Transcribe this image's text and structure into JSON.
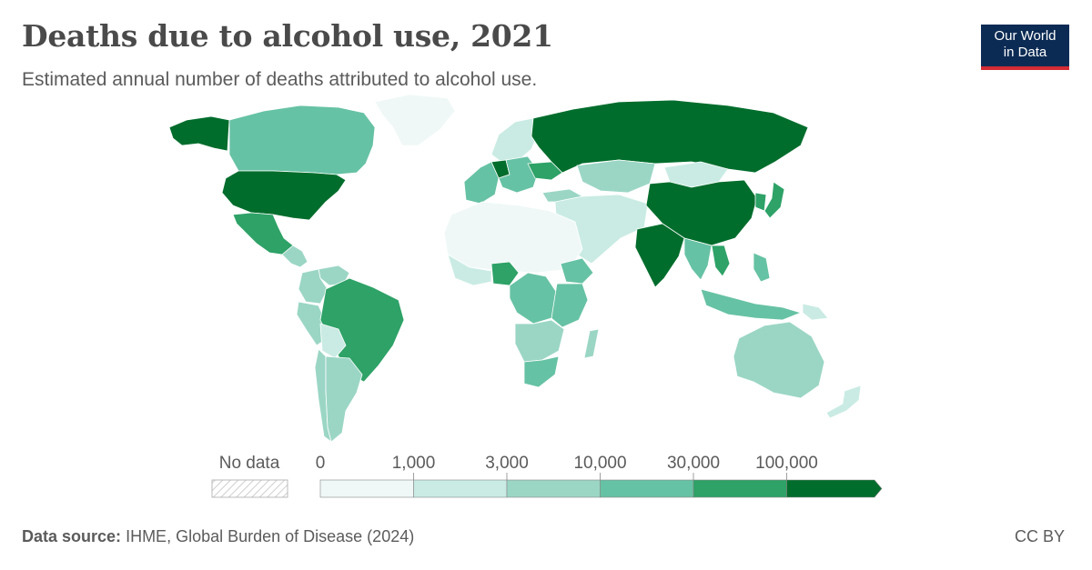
{
  "header": {
    "title": "Deaths due to alcohol use, 2021",
    "subtitle": "Estimated annual number of deaths attributed to alcohol use."
  },
  "logo": {
    "line1": "Our World",
    "line2": "in Data"
  },
  "legend": {
    "no_data_label": "No data",
    "tick_labels": [
      "0",
      "1,000",
      "3,000",
      "10,000",
      "30,000",
      "100,000"
    ],
    "colors": [
      "#eff8f7",
      "#c9ebe3",
      "#9bd6c5",
      "#66c2a4",
      "#2ea267",
      "#006d2c"
    ]
  },
  "footer": {
    "source_label": "Data source:",
    "source_text": "IHME, Global Burden of Disease (2024)",
    "license": "CC BY"
  },
  "map_data": {
    "type": "choropleth",
    "metric": "deaths attributed to alcohol use",
    "bins": [
      0,
      1000,
      3000,
      10000,
      30000,
      100000
    ],
    "regions": [
      {
        "id": "usa",
        "bin": 5
      },
      {
        "id": "alaska",
        "bin": 5
      },
      {
        "id": "canada",
        "bin": 3
      },
      {
        "id": "greenland",
        "bin": 0
      },
      {
        "id": "mexico",
        "bin": 4
      },
      {
        "id": "central-america",
        "bin": 2
      },
      {
        "id": "colombia",
        "bin": 2
      },
      {
        "id": "venezuela",
        "bin": 2
      },
      {
        "id": "peru",
        "bin": 2
      },
      {
        "id": "brazil",
        "bin": 4
      },
      {
        "id": "bolivia",
        "bin": 1
      },
      {
        "id": "argentina",
        "bin": 2
      },
      {
        "id": "chile",
        "bin": 2
      },
      {
        "id": "russia",
        "bin": 5
      },
      {
        "id": "china",
        "bin": 5
      },
      {
        "id": "india",
        "bin": 5
      },
      {
        "id": "mongolia",
        "bin": 1
      },
      {
        "id": "kazakhstan",
        "bin": 2
      },
      {
        "id": "nordics",
        "bin": 1
      },
      {
        "id": "western-europe",
        "bin": 3
      },
      {
        "id": "germany",
        "bin": 5
      },
      {
        "id": "eastern-europe",
        "bin": 3
      },
      {
        "id": "ukraine",
        "bin": 4
      },
      {
        "id": "turkey",
        "bin": 2
      },
      {
        "id": "middle-east",
        "bin": 1
      },
      {
        "id": "north-africa",
        "bin": 0
      },
      {
        "id": "west-africa",
        "bin": 1
      },
      {
        "id": "nigeria",
        "bin": 4
      },
      {
        "id": "central-africa",
        "bin": 3
      },
      {
        "id": "ethiopia",
        "bin": 3
      },
      {
        "id": "east-africa",
        "bin": 3
      },
      {
        "id": "southern-africa",
        "bin": 2
      },
      {
        "id": "south-africa",
        "bin": 3
      },
      {
        "id": "madagascar",
        "bin": 2
      },
      {
        "id": "southeast-asia",
        "bin": 3
      },
      {
        "id": "vietnam",
        "bin": 4
      },
      {
        "id": "indonesia",
        "bin": 3
      },
      {
        "id": "philippines",
        "bin": 3
      },
      {
        "id": "japan",
        "bin": 4
      },
      {
        "id": "korea",
        "bin": 4
      },
      {
        "id": "australia",
        "bin": 2
      },
      {
        "id": "new-zealand",
        "bin": 1
      },
      {
        "id": "png",
        "bin": 1
      }
    ]
  }
}
